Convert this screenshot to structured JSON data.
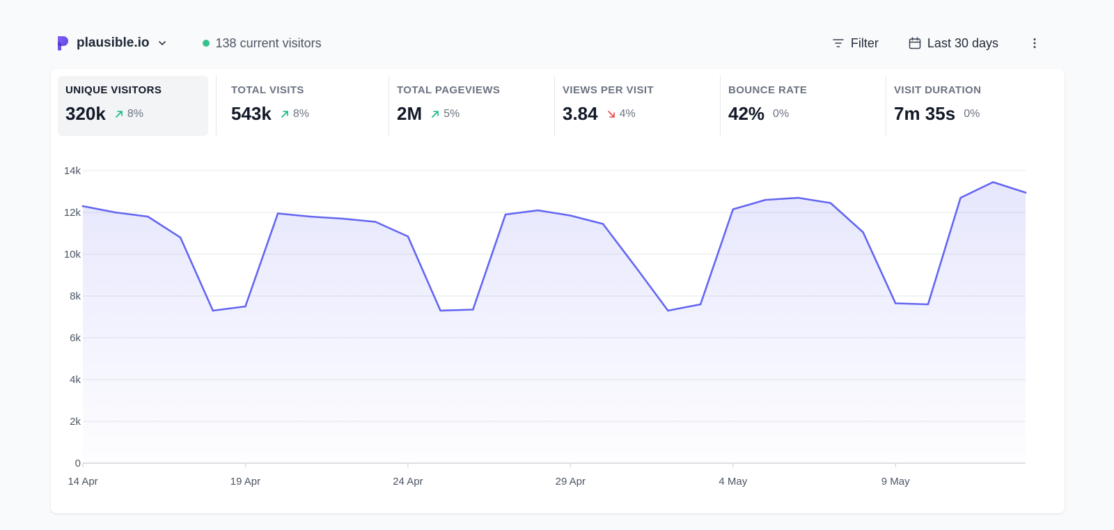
{
  "header": {
    "site_name": "plausible.io",
    "live_visitors": "138 current visitors",
    "filter_label": "Filter",
    "period_label": "Last 30 days"
  },
  "colors": {
    "accent": "#6366f1",
    "live": "#34c38f",
    "up": "#10b981",
    "down": "#ef4444"
  },
  "metrics": [
    {
      "label": "UNIQUE VISITORS",
      "value": "320k",
      "change": "8%",
      "trend": "up"
    },
    {
      "label": "TOTAL VISITS",
      "value": "543k",
      "change": "8%",
      "trend": "up"
    },
    {
      "label": "TOTAL PAGEVIEWS",
      "value": "2M",
      "change": "5%",
      "trend": "up"
    },
    {
      "label": "VIEWS PER VISIT",
      "value": "3.84",
      "change": "4%",
      "trend": "down"
    },
    {
      "label": "BOUNCE RATE",
      "value": "42%",
      "change": "0%",
      "trend": "flat"
    },
    {
      "label": "VISIT DURATION",
      "value": "7m 35s",
      "change": "0%",
      "trend": "flat"
    }
  ],
  "chart_data": {
    "type": "area",
    "title": "",
    "xlabel": "",
    "ylabel": "",
    "ylim": [
      0,
      14000
    ],
    "yticks": [
      {
        "value": 0,
        "label": "0"
      },
      {
        "value": 2000,
        "label": "2k"
      },
      {
        "value": 4000,
        "label": "4k"
      },
      {
        "value": 6000,
        "label": "6k"
      },
      {
        "value": 8000,
        "label": "8k"
      },
      {
        "value": 10000,
        "label": "10k"
      },
      {
        "value": 12000,
        "label": "12k"
      },
      {
        "value": 14000,
        "label": "14k"
      }
    ],
    "xticks": [
      {
        "index": 0,
        "label": "14 Apr"
      },
      {
        "index": 5,
        "label": "19 Apr"
      },
      {
        "index": 10,
        "label": "24 Apr"
      },
      {
        "index": 15,
        "label": "29 Apr"
      },
      {
        "index": 20,
        "label": "4 May"
      },
      {
        "index": 25,
        "label": "9 May"
      }
    ],
    "grid": true,
    "x": [
      "14 Apr",
      "15 Apr",
      "16 Apr",
      "17 Apr",
      "18 Apr",
      "19 Apr",
      "20 Apr",
      "21 Apr",
      "22 Apr",
      "23 Apr",
      "24 Apr",
      "25 Apr",
      "26 Apr",
      "27 Apr",
      "28 Apr",
      "29 Apr",
      "30 Apr",
      "1 May",
      "2 May",
      "3 May",
      "4 May",
      "5 May",
      "6 May",
      "7 May",
      "8 May",
      "9 May",
      "10 May",
      "11 May",
      "12 May",
      "13 May"
    ],
    "series": [
      {
        "values": [
          12300,
          12000,
          11800,
          10800,
          7300,
          7500,
          11950,
          11800,
          11700,
          11550,
          10850,
          7300,
          7350,
          11900,
          12100,
          11850,
          11450,
          9400,
          7300,
          7600,
          12150,
          12600,
          12700,
          12450,
          11050,
          7650,
          7600,
          12700,
          13450,
          12950
        ]
      }
    ]
  }
}
